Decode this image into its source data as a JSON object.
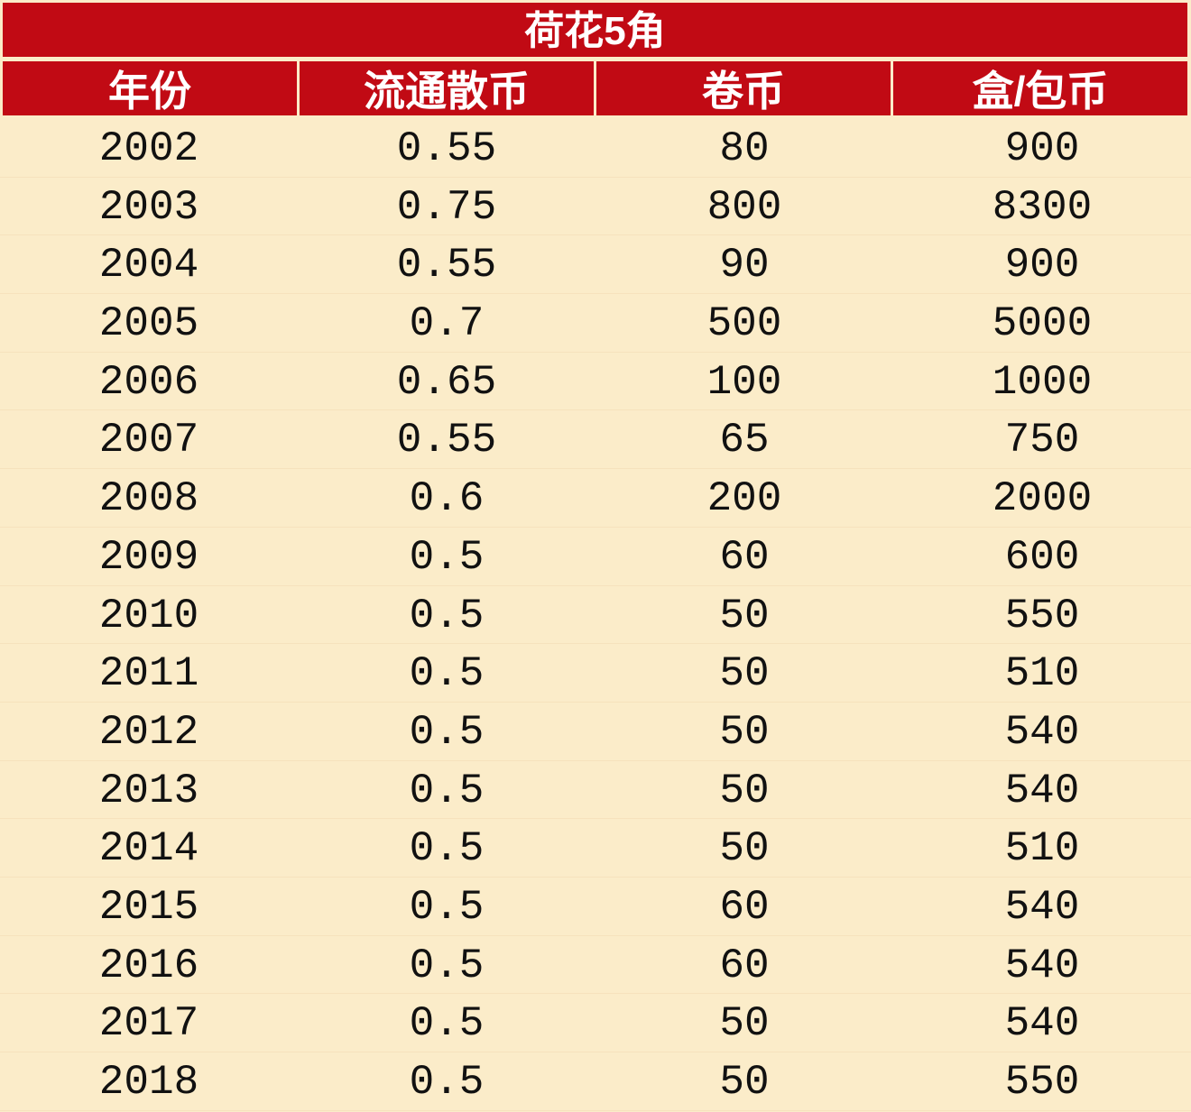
{
  "table": {
    "title": "荷花5角",
    "headers": [
      "年份",
      "流通散币",
      "卷币",
      "盒/包币"
    ],
    "colors": {
      "header": "#c10a14",
      "background": "#fbecc9"
    },
    "rows": [
      [
        "2002",
        "0.55",
        "80",
        "900"
      ],
      [
        "2003",
        "0.75",
        "800",
        "8300"
      ],
      [
        "2004",
        "0.55",
        "90",
        "900"
      ],
      [
        "2005",
        "0.7",
        "500",
        "5000"
      ],
      [
        "2006",
        "0.65",
        "100",
        "1000"
      ],
      [
        "2007",
        "0.55",
        "65",
        "750"
      ],
      [
        "2008",
        "0.6",
        "200",
        "2000"
      ],
      [
        "2009",
        "0.5",
        "60",
        "600"
      ],
      [
        "2010",
        "0.5",
        "50",
        "550"
      ],
      [
        "2011",
        "0.5",
        "50",
        "510"
      ],
      [
        "2012",
        "0.5",
        "50",
        "540"
      ],
      [
        "2013",
        "0.5",
        "50",
        "540"
      ],
      [
        "2014",
        "0.5",
        "50",
        "510"
      ],
      [
        "2015",
        "0.5",
        "60",
        "540"
      ],
      [
        "2016",
        "0.5",
        "60",
        "540"
      ],
      [
        "2017",
        "0.5",
        "50",
        "540"
      ],
      [
        "2018",
        "0.5",
        "50",
        "550"
      ]
    ]
  }
}
